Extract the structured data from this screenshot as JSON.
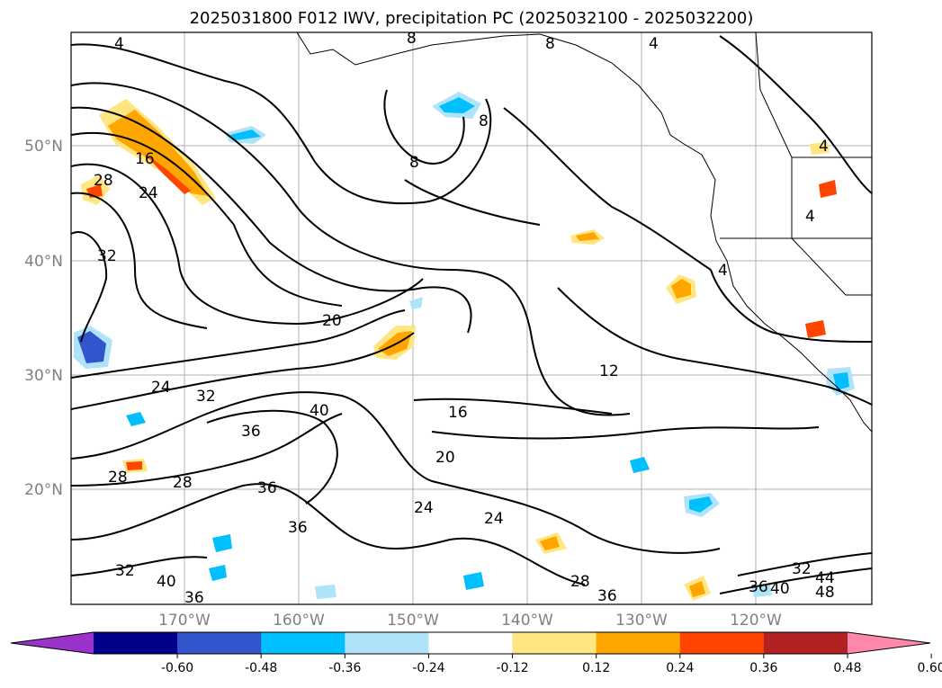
{
  "figure": {
    "title": "2025031800 F012 IWV, precipitation PC (2025032100 - 2025032200)"
  },
  "map": {
    "lat_labels": [
      "50°N",
      "40°N",
      "30°N",
      "20°N"
    ],
    "lon_labels": [
      "170°W",
      "160°W",
      "150°W",
      "140°W",
      "130°W",
      "120°W"
    ],
    "gridlines": true,
    "extent": {
      "lon_min": -178,
      "lon_max": -108,
      "lat_min": 10,
      "lat_max": 60
    },
    "iwv_contour_labels": [
      "4",
      "8",
      "8",
      "8",
      "8",
      "4",
      "16",
      "28",
      "24",
      "32",
      "4",
      "4",
      "4",
      "20",
      "24",
      "32",
      "36",
      "40",
      "16",
      "12",
      "20",
      "28",
      "28",
      "36",
      "24",
      "24",
      "36",
      "32",
      "40",
      "36",
      "28",
      "36",
      "36",
      "40",
      "32",
      "44",
      "48"
    ]
  },
  "colorbar": {
    "extend": "both",
    "ticks": [
      "-0.60",
      "-0.48",
      "-0.36",
      "-0.24",
      "-0.12",
      "0.12",
      "0.24",
      "0.36",
      "0.48",
      "0.60"
    ],
    "colors": {
      "under": "#9933cc",
      "bins": [
        "#00008b",
        "#3355cc",
        "#00bfff",
        "#afe3fa",
        "#ffffff",
        "#ffe680",
        "#ffa500",
        "#ff4500",
        "#b22222"
      ],
      "over": "#ff88aa"
    }
  }
}
